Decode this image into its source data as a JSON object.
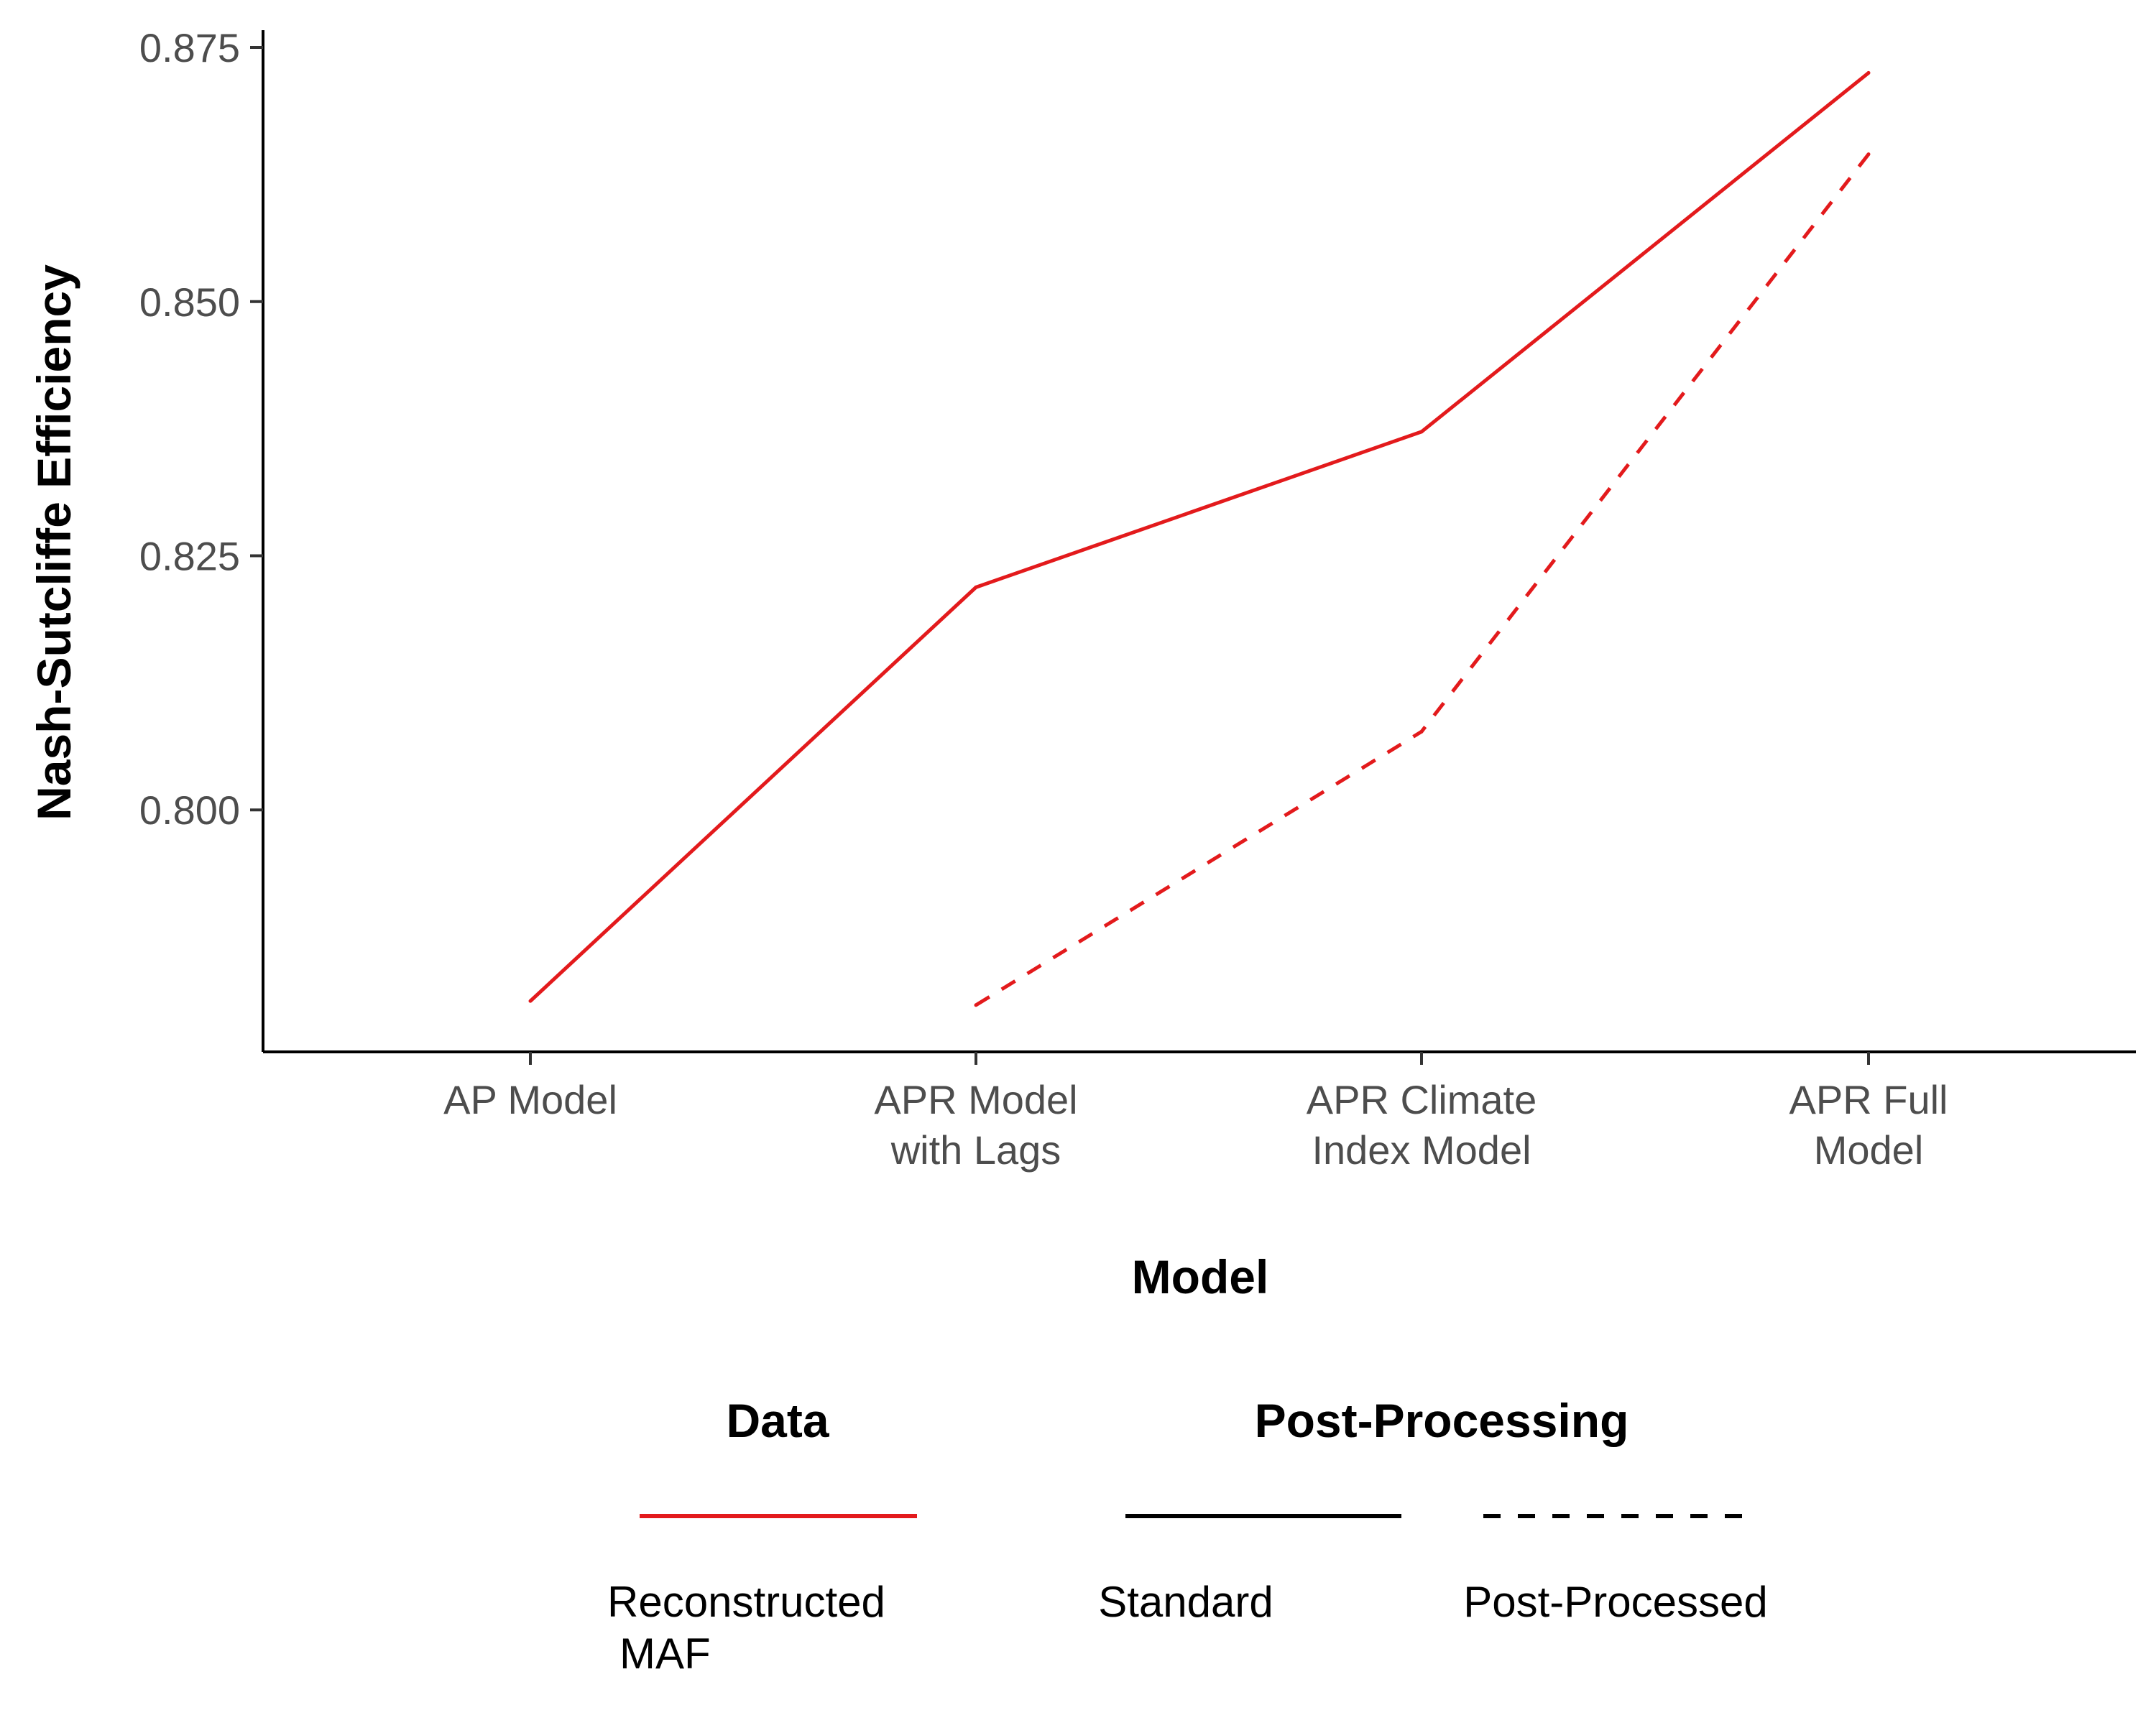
{
  "chart_data": {
    "type": "line",
    "title": "",
    "xlabel": "Model",
    "ylabel": "Nash-Sutcliffe Efficiency",
    "categories": [
      [
        "AP Model"
      ],
      [
        "APR Model",
        "with Lags"
      ],
      [
        "APR Climate",
        "Index Model"
      ],
      [
        "APR Full",
        "Model"
      ]
    ],
    "yticks": [
      0.8,
      0.825,
      0.85,
      0.875
    ],
    "ytick_labels": [
      "0.800",
      "0.825",
      "0.850",
      "0.875"
    ],
    "ylim": [
      0.7762,
      0.8767
    ],
    "grid": false,
    "series": [
      {
        "name": "Standard",
        "data": "Reconstructed MAF",
        "post_processing": "Standard",
        "color": "#e31a1c",
        "dash": "solid",
        "values": [
          0.7812,
          0.8219,
          0.8372,
          0.8725
        ]
      },
      {
        "name": "Post-Processed",
        "data": "Reconstructed MAF",
        "post_processing": "Post-Processed",
        "color": "#e31a1c",
        "dash": "dashed",
        "values": [
          null,
          0.7808,
          0.8077,
          0.8645
        ]
      }
    ],
    "legend": {
      "position": "bottom",
      "data_title": "Data",
      "data_items": [
        {
          "label": [
            "Reconstructed",
            "MAF"
          ],
          "color": "#e31a1c"
        }
      ],
      "pp_title": "Post-Processing",
      "pp_items": [
        {
          "label": "Standard",
          "dash": "solid",
          "color": "#000000"
        },
        {
          "label": "Post-Processed",
          "dash": "dashed",
          "color": "#000000"
        }
      ]
    }
  }
}
